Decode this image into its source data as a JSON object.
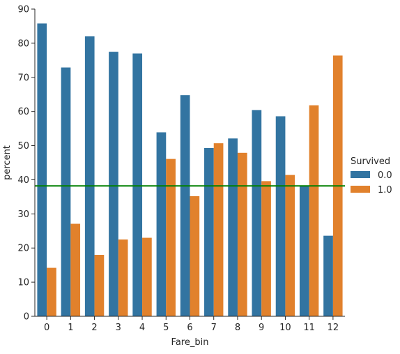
{
  "chart_data": {
    "type": "bar",
    "xlabel": "Fare_bin",
    "ylabel": "percent",
    "categories": [
      "0",
      "1",
      "2",
      "3",
      "4",
      "5",
      "6",
      "7",
      "8",
      "9",
      "10",
      "11",
      "12"
    ],
    "series": [
      {
        "name": "0.0",
        "color": "#3274a1",
        "values": [
          85.8,
          72.9,
          82.0,
          77.5,
          77.0,
          53.9,
          64.8,
          49.3,
          52.1,
          60.4,
          58.6,
          38.2,
          23.6
        ]
      },
      {
        "name": "1.0",
        "color": "#e1812c",
        "values": [
          14.2,
          27.1,
          18.0,
          22.5,
          23.0,
          46.1,
          35.2,
          50.7,
          47.9,
          39.6,
          41.4,
          61.8,
          76.4
        ]
      }
    ],
    "reference_line": {
      "value": 38.2,
      "color": "#008000"
    },
    "ylim": [
      0,
      90
    ],
    "yticks": [
      0,
      10,
      20,
      30,
      40,
      50,
      60,
      70,
      80,
      90
    ],
    "legend": {
      "title": "Survived",
      "position": "right"
    },
    "grid": false
  }
}
